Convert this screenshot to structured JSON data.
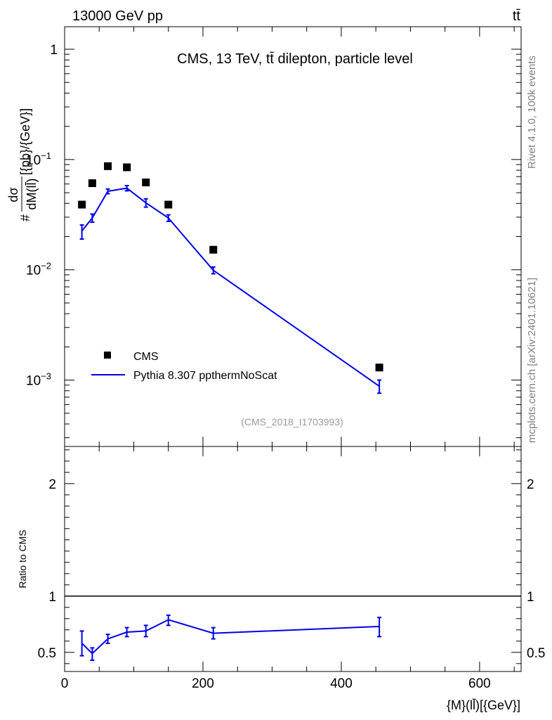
{
  "header": {
    "process": "13000 GeV pp",
    "channel": "tt̄"
  },
  "side_text": {
    "rivet": "Rivet 4.1.0,  100k events",
    "source": "mcplots.cern.ch [arXiv:2401.10621]"
  },
  "colors": {
    "data": "#000000",
    "mc": "#0000e6",
    "watermark": "#999999",
    "side": "#808080"
  },
  "chart_data": [
    {
      "type": "scatter",
      "panel": "main",
      "title": "CMS, 13 TeV, tt̄ dilepton, particle level",
      "ylabel": "#dσ/dM(ll̄)[{pb}/{GeV}]",
      "ylabel_parts": {
        "prefix": "#",
        "num": "dσ",
        "den": "dM(ll̄)",
        "unit": "[{pb}/{GeV}]"
      },
      "yscale": "log",
      "xlim": [
        0,
        660
      ],
      "ylim": [
        0.00025,
        1.6
      ],
      "y_ticks": [
        {
          "value": 1,
          "label": "1"
        },
        {
          "value": 0.1,
          "base": "10",
          "exp": "−1"
        },
        {
          "value": 0.01,
          "base": "10",
          "exp": "−2"
        },
        {
          "value": 0.001,
          "base": "10",
          "exp": "−3"
        }
      ],
      "watermark": "(CMS_2018_I1703993)",
      "legend_position": "lower-left",
      "series": [
        {
          "name": "CMS",
          "kind": "markers",
          "x": [
            25,
            40,
            62.5,
            90,
            117.5,
            150,
            215,
            455
          ],
          "y": [
            0.039,
            0.061,
            0.087,
            0.085,
            0.062,
            0.039,
            0.0152,
            0.0013
          ]
        },
        {
          "name": "Pythia 8.307 ppthermNoScat",
          "kind": "line",
          "x": [
            25,
            40,
            62.5,
            90,
            117.5,
            150,
            215,
            455
          ],
          "y": [
            0.0225,
            0.0295,
            0.0515,
            0.055,
            0.0405,
            0.0295,
            0.0099,
            0.00088
          ],
          "yerr_low": [
            0.019,
            0.027,
            0.049,
            0.052,
            0.037,
            0.0275,
            0.0092,
            0.00076
          ],
          "yerr_high": [
            0.0255,
            0.032,
            0.054,
            0.058,
            0.044,
            0.0315,
            0.0106,
            0.001
          ]
        }
      ]
    },
    {
      "type": "line",
      "panel": "ratio",
      "ylabel": "Ratio to CMS",
      "xlabel": "{M}(ll̄)[{GeV}]",
      "xlim": [
        0,
        660
      ],
      "ylim": [
        0.33,
        2.33
      ],
      "x_ticks": [
        0,
        200,
        400,
        600
      ],
      "y_ticks": [
        0.5,
        1,
        2
      ],
      "y_tick_labels": [
        "0.5",
        "1",
        "2"
      ],
      "reference_line": 1,
      "series": [
        {
          "name": "Pythia 8.307 ppthermNoScat",
          "x": [
            25,
            40,
            62.5,
            90,
            117.5,
            150,
            215,
            455
          ],
          "y": [
            0.58,
            0.49,
            0.62,
            0.68,
            0.69,
            0.79,
            0.67,
            0.73
          ],
          "yerr_low": [
            0.47,
            0.43,
            0.58,
            0.64,
            0.64,
            0.74,
            0.62,
            0.64
          ],
          "yerr_high": [
            0.69,
            0.54,
            0.66,
            0.72,
            0.74,
            0.83,
            0.72,
            0.81
          ]
        }
      ]
    }
  ]
}
